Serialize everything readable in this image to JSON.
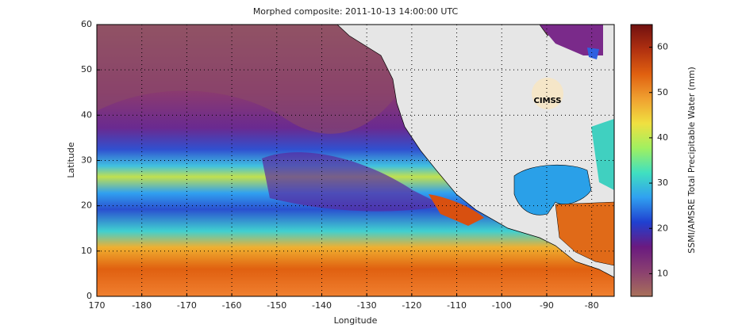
{
  "chart_data": {
    "type": "map",
    "title": "Morphed composite: 2011-10-13 14:00:00 UTC",
    "xlabel": "Longitude",
    "ylabel": "Latitude",
    "xlim": [
      170,
      285
    ],
    "ylim": [
      0,
      60
    ],
    "xticks": [
      170,
      {
        "value": 180,
        "label": "-180"
      },
      {
        "value": 190,
        "label": "-170"
      },
      {
        "value": 200,
        "label": "-160"
      },
      {
        "value": 210,
        "label": "-150"
      },
      {
        "value": 220,
        "label": "-140"
      },
      {
        "value": 230,
        "label": "-130"
      },
      {
        "value": 240,
        "label": "-120"
      },
      {
        "value": 250,
        "label": "-110"
      },
      {
        "value": 260,
        "label": "-100"
      },
      {
        "value": 270,
        "label": "-90"
      },
      {
        "value": 280,
        "label": "-80"
      }
    ],
    "yticks": [
      0,
      10,
      20,
      30,
      40,
      50,
      60
    ],
    "grid": true,
    "logo": "CIMSS",
    "colorbar": {
      "label": "SSMI/AMSRE Total Precipitable Water (mm)",
      "clim": [
        5,
        65
      ],
      "ticks": [
        10,
        20,
        30,
        40,
        50,
        60
      ],
      "colors": [
        "#a8705a",
        "#8a4070",
        "#6a1a80",
        "#2040d0",
        "#30a0f0",
        "#40e0c0",
        "#a0f060",
        "#f0e040",
        "#f0a030",
        "#e06010",
        "#b03010",
        "#701010"
      ]
    }
  }
}
